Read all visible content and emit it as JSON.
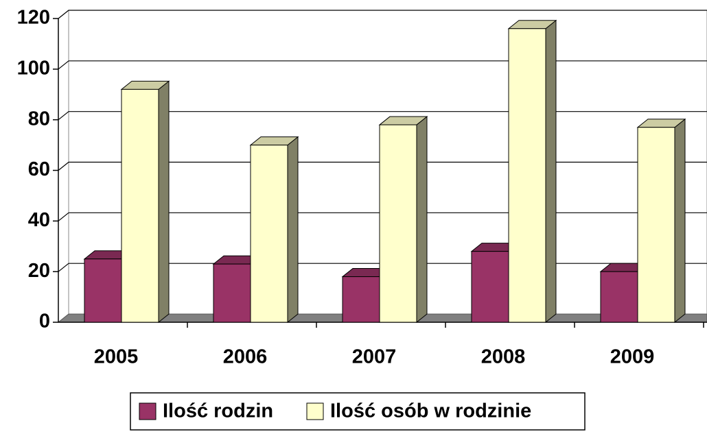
{
  "chart_data": {
    "type": "bar3d",
    "categories": [
      "2005",
      "2006",
      "2007",
      "2008",
      "2009"
    ],
    "series": [
      {
        "name": "Ilość rodzin",
        "color": "#993366",
        "values": [
          25,
          23,
          18,
          28,
          20
        ]
      },
      {
        "name": "Ilość osób w rodzinie",
        "color": "#FFFFCC",
        "values": [
          92,
          70,
          78,
          116,
          77
        ]
      }
    ],
    "ylim": [
      0,
      120
    ],
    "yticks": [
      0,
      20,
      40,
      60,
      80,
      100,
      120
    ],
    "grid": true,
    "legend": "bottom"
  }
}
